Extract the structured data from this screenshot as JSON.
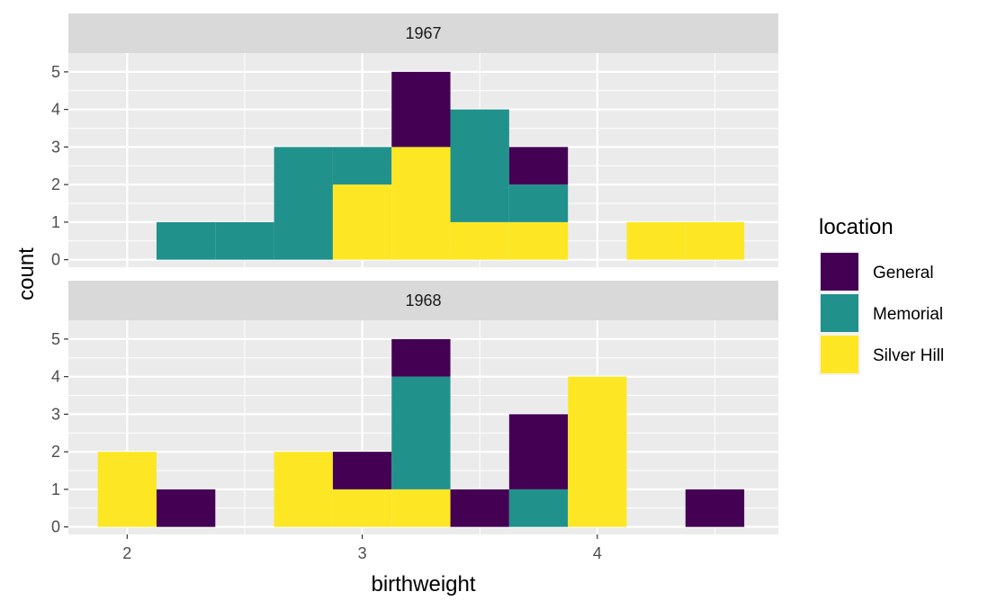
{
  "chart_data": {
    "type": "bar",
    "subtype": "stacked-histogram-faceted",
    "xlabel": "birthweight",
    "ylabel": "count",
    "xlim": [
      1.75,
      4.77
    ],
    "ylim": [
      -0.2,
      5.5
    ],
    "x_ticks": [
      2,
      3,
      4
    ],
    "y_ticks": [
      0,
      1,
      2,
      3,
      4,
      5
    ],
    "bin_width": 0.25,
    "grid": true,
    "legend": {
      "title": "location",
      "position": "right",
      "entries": [
        {
          "name": "General",
          "color": "#440154"
        },
        {
          "name": "Memorial",
          "color": "#21918c"
        },
        {
          "name": "Silver Hill",
          "color": "#fde725"
        }
      ]
    },
    "bins": [
      2.0,
      2.25,
      2.5,
      2.75,
      3.0,
      3.25,
      3.5,
      3.75,
      4.0,
      4.25,
      4.5
    ],
    "facets": [
      {
        "label": "1967",
        "series": [
          {
            "name": "Silver Hill",
            "values": [
              0,
              0,
              0,
              0,
              2,
              3,
              1,
              1,
              0,
              1,
              1
            ]
          },
          {
            "name": "Memorial",
            "values": [
              0,
              1,
              1,
              3,
              1,
              0,
              3,
              1,
              0,
              0,
              0
            ]
          },
          {
            "name": "General",
            "values": [
              0,
              0,
              0,
              0,
              0,
              2,
              0,
              1,
              0,
              0,
              0
            ]
          }
        ]
      },
      {
        "label": "1968",
        "series": [
          {
            "name": "Silver Hill",
            "values": [
              2,
              0,
              0,
              2,
              1,
              1,
              0,
              0,
              4,
              0,
              0
            ]
          },
          {
            "name": "Memorial",
            "values": [
              0,
              0,
              0,
              0,
              0,
              3,
              0,
              1,
              0,
              0,
              0
            ]
          },
          {
            "name": "General",
            "values": [
              0,
              1,
              0,
              0,
              1,
              1,
              1,
              2,
              0,
              0,
              1
            ]
          }
        ]
      }
    ]
  }
}
